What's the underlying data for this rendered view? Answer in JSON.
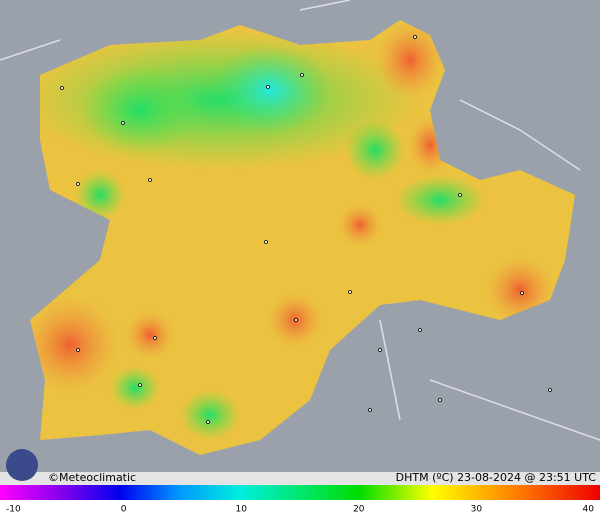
{
  "credit": "©Meteoclimatic",
  "caption": "DHTM (ºC) 23-08-2024 @ 23:51 UTC",
  "legend": {
    "ticks": [
      -10,
      0,
      10,
      20,
      30,
      40
    ]
  }
}
